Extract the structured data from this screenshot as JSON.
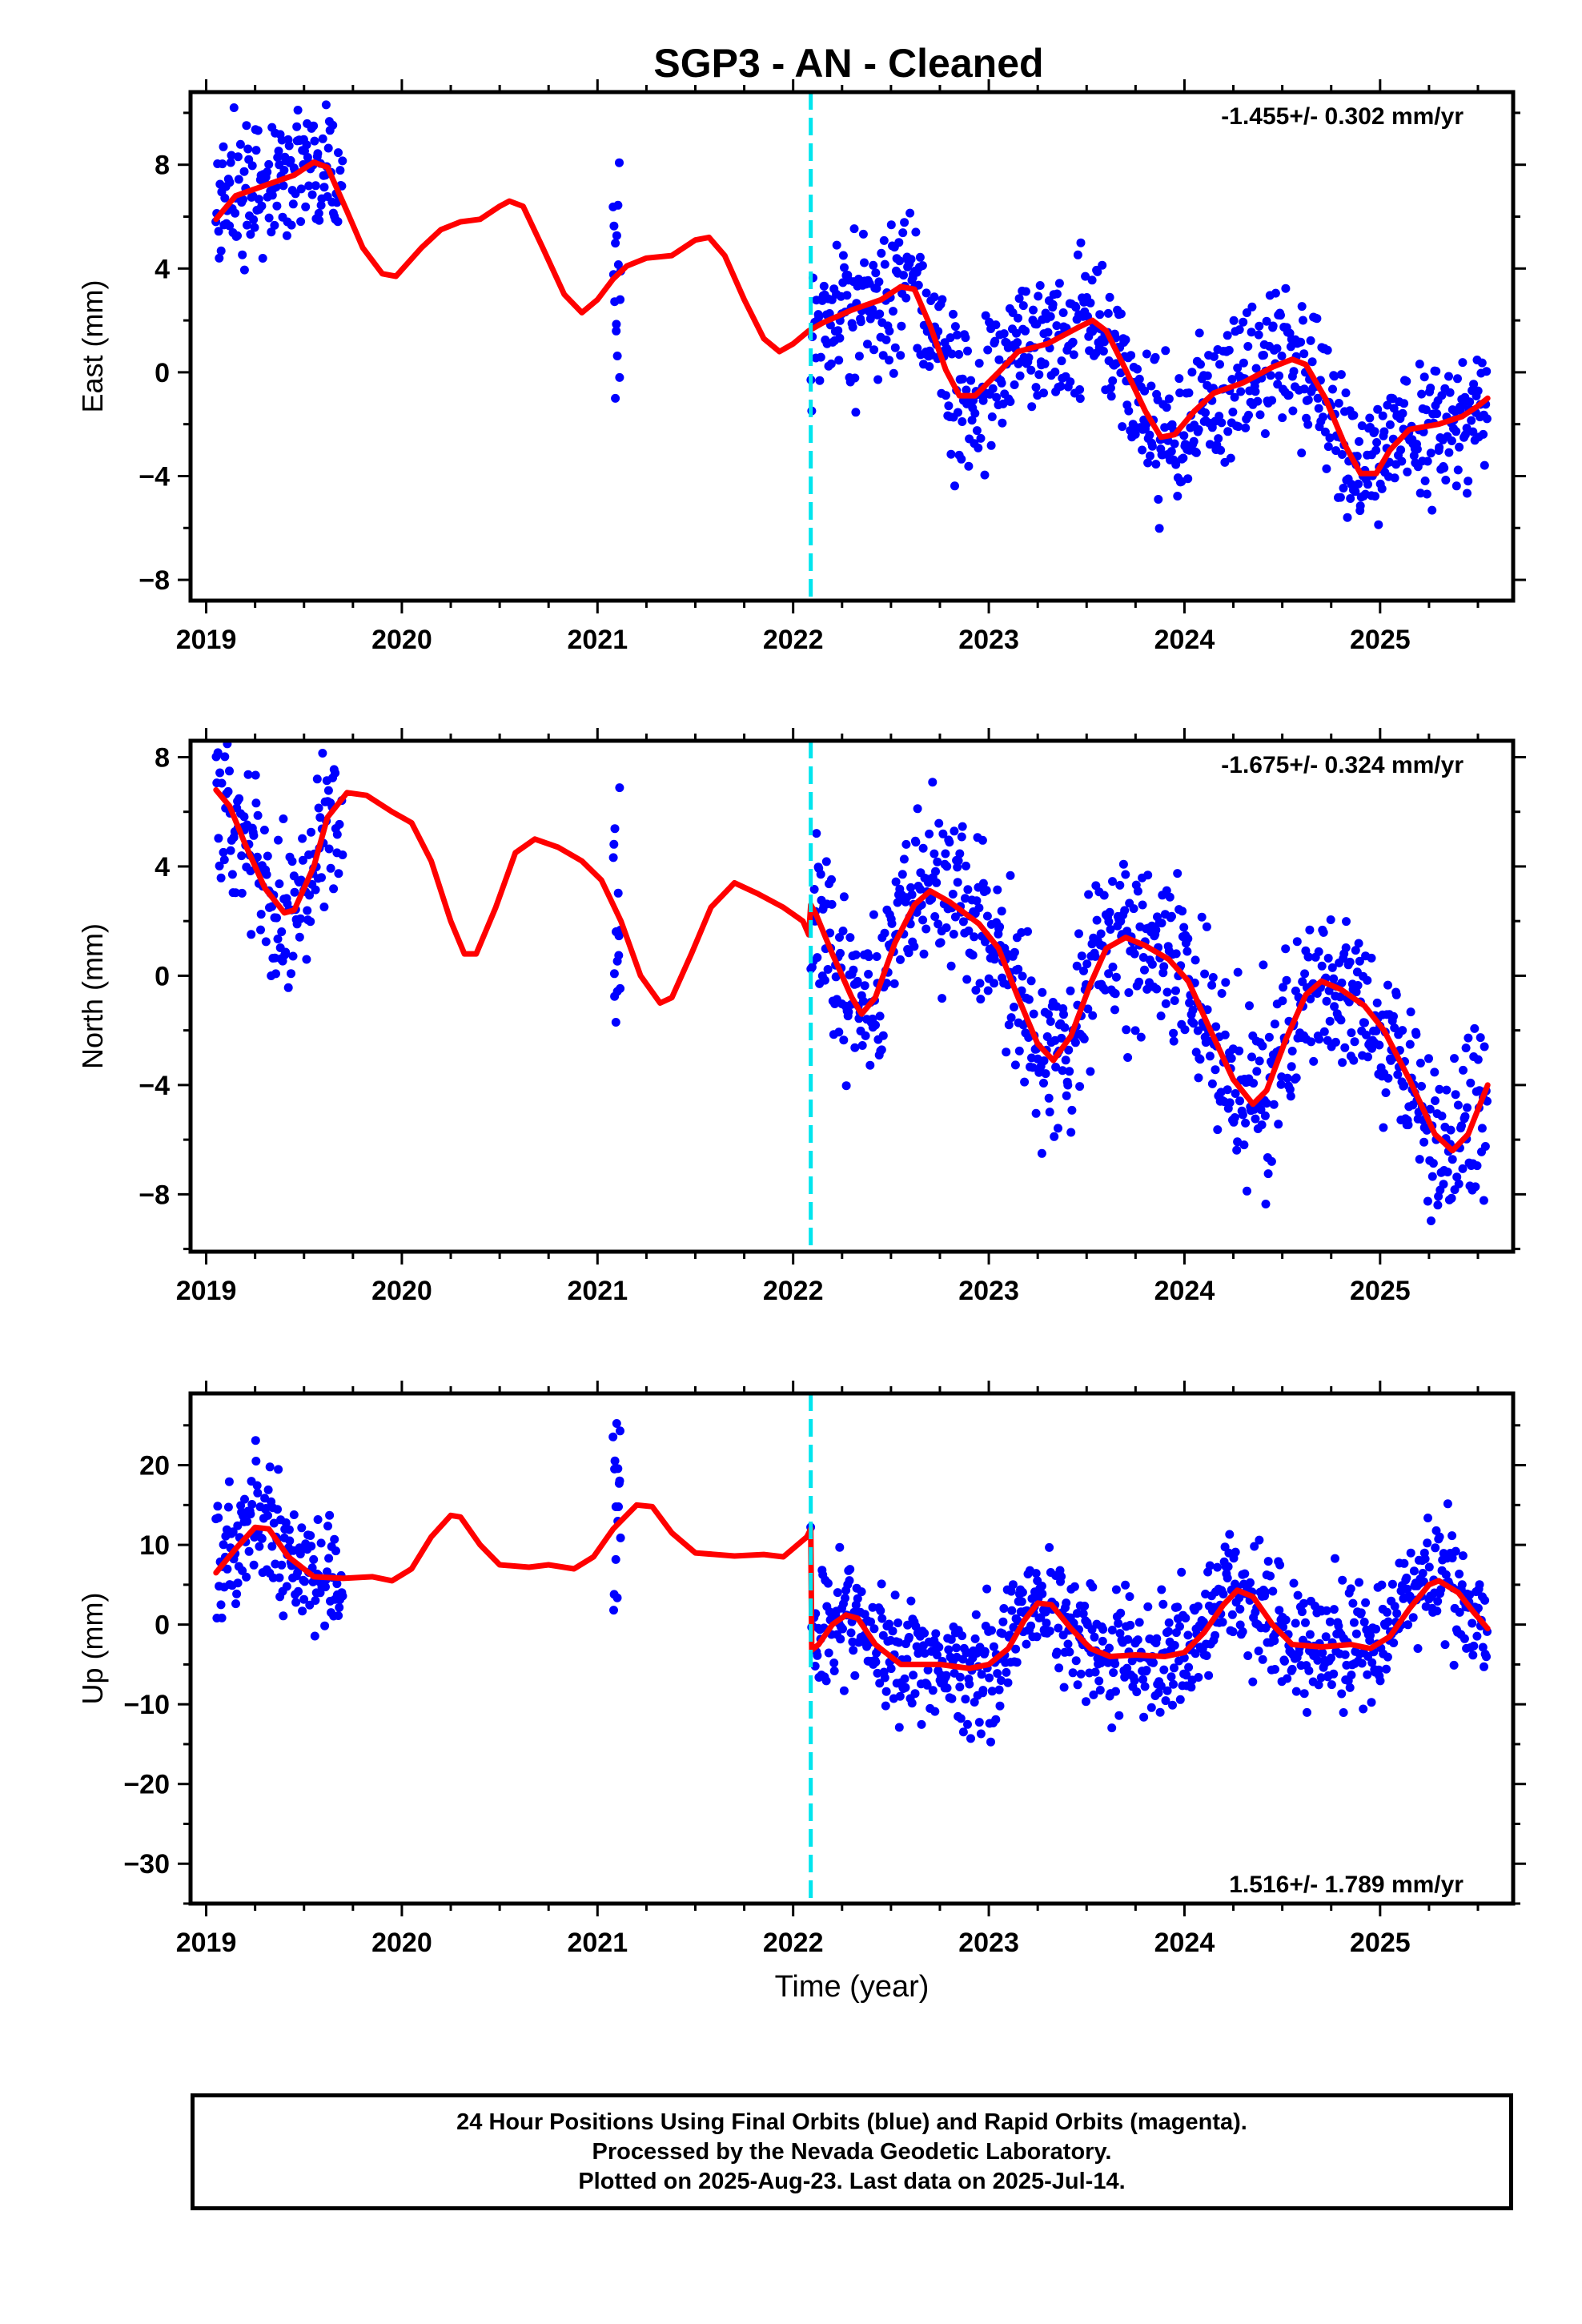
{
  "title": "SGP3  - AN - Cleaned",
  "colors": {
    "data": "#0000ff",
    "model": "#ff0000",
    "event": "#00e5ee",
    "axis": "#000000"
  },
  "chart_data": [
    {
      "type": "scatter",
      "name": "east",
      "ylabel": "East (mm)",
      "xlabel": "",
      "ylim": [
        -8.8,
        10.8
      ],
      "xlim": [
        2018.92,
        2025.68
      ],
      "yticks": [
        -8,
        -4,
        0,
        4,
        8
      ],
      "rate_label": "-1.455+/- 0.302 mm/yr",
      "rate_position": "top-right",
      "model_curve": [
        [
          2019.05,
          5.9
        ],
        [
          2019.15,
          6.8
        ],
        [
          2019.3,
          7.2
        ],
        [
          2019.45,
          7.6
        ],
        [
          2019.55,
          8.1
        ],
        [
          2019.62,
          7.9
        ],
        [
          2019.72,
          6.2
        ],
        [
          2019.8,
          4.8
        ],
        [
          2019.9,
          3.8
        ],
        [
          2019.97,
          3.7
        ],
        [
          2020.1,
          4.8
        ],
        [
          2020.2,
          5.5
        ],
        [
          2020.3,
          5.8
        ],
        [
          2020.4,
          5.9
        ],
        [
          2020.5,
          6.4
        ],
        [
          2020.55,
          6.6
        ],
        [
          2020.62,
          6.4
        ],
        [
          2020.72,
          4.8
        ],
        [
          2020.83,
          3
        ],
        [
          2020.92,
          2.3
        ],
        [
          2021.0,
          2.8
        ],
        [
          2021.08,
          3.6
        ],
        [
          2021.15,
          4.1
        ],
        [
          2021.25,
          4.4
        ],
        [
          2021.38,
          4.5
        ],
        [
          2021.5,
          5.1
        ],
        [
          2021.57,
          5.2
        ],
        [
          2021.65,
          4.5
        ],
        [
          2021.75,
          2.8
        ],
        [
          2021.85,
          1.3
        ],
        [
          2021.93,
          0.8
        ],
        [
          2022.0,
          1.1
        ],
        [
          2022.08,
          1.6
        ],
        [
          2022.15,
          1.9
        ],
        [
          2022.3,
          2.4
        ],
        [
          2022.45,
          2.8
        ],
        [
          2022.55,
          3.3
        ],
        [
          2022.62,
          3.2
        ],
        [
          2022.7,
          1.8
        ],
        [
          2022.78,
          0.1
        ],
        [
          2022.85,
          -0.9
        ],
        [
          2022.93,
          -0.9
        ],
        [
          2023.05,
          0
        ],
        [
          2023.15,
          0.8
        ],
        [
          2023.3,
          1.1
        ],
        [
          2023.45,
          1.7
        ],
        [
          2023.53,
          2
        ],
        [
          2023.6,
          1.6
        ],
        [
          2023.7,
          0.1
        ],
        [
          2023.8,
          -1.5
        ],
        [
          2023.88,
          -2.5
        ],
        [
          2023.95,
          -2.4
        ],
        [
          2024.05,
          -1.5
        ],
        [
          2024.15,
          -0.8
        ],
        [
          2024.3,
          -0.4
        ],
        [
          2024.45,
          0.2
        ],
        [
          2024.55,
          0.5
        ],
        [
          2024.62,
          0.3
        ],
        [
          2024.72,
          -1
        ],
        [
          2024.82,
          -2.8
        ],
        [
          2024.9,
          -3.9
        ],
        [
          2024.98,
          -3.9
        ],
        [
          2025.05,
          -3
        ],
        [
          2025.15,
          -2.2
        ],
        [
          2025.3,
          -2
        ],
        [
          2025.42,
          -1.7
        ],
        [
          2025.5,
          -1.3
        ],
        [
          2025.55,
          -1
        ]
      ]
    },
    {
      "type": "scatter",
      "name": "north",
      "ylabel": "North (mm)",
      "xlabel": "",
      "ylim": [
        -10.1,
        8.6
      ],
      "xlim": [
        2018.92,
        2025.68
      ],
      "yticks": [
        -8,
        -4,
        0,
        4,
        8
      ],
      "rate_label": "-1.675+/- 0.324 mm/yr",
      "rate_position": "top-right",
      "model_curve": [
        [
          2019.05,
          6.8
        ],
        [
          2019.12,
          6.2
        ],
        [
          2019.2,
          4.8
        ],
        [
          2019.3,
          3.2
        ],
        [
          2019.4,
          2.3
        ],
        [
          2019.45,
          2.4
        ],
        [
          2019.55,
          4
        ],
        [
          2019.62,
          5.8
        ],
        [
          2019.72,
          6.7
        ],
        [
          2019.82,
          6.6
        ],
        [
          2019.95,
          6
        ],
        [
          2020.05,
          5.6
        ],
        [
          2020.15,
          4.2
        ],
        [
          2020.25,
          2
        ],
        [
          2020.32,
          0.8
        ],
        [
          2020.38,
          0.8
        ],
        [
          2020.48,
          2.5
        ],
        [
          2020.58,
          4.5
        ],
        [
          2020.68,
          5
        ],
        [
          2020.8,
          4.7
        ],
        [
          2020.92,
          4.2
        ],
        [
          2021.02,
          3.5
        ],
        [
          2021.12,
          2
        ],
        [
          2021.22,
          0
        ],
        [
          2021.32,
          -1
        ],
        [
          2021.38,
          -0.8
        ],
        [
          2021.48,
          0.8
        ],
        [
          2021.58,
          2.5
        ],
        [
          2021.7,
          3.4
        ],
        [
          2021.82,
          3
        ],
        [
          2021.95,
          2.5
        ],
        [
          2022.05,
          2
        ],
        [
          2022.08,
          1.5
        ],
        [
          2022.09,
          2.6
        ],
        [
          2022.12,
          2.2
        ],
        [
          2022.2,
          0.8
        ],
        [
          2022.3,
          -0.8
        ],
        [
          2022.35,
          -1.4
        ],
        [
          2022.42,
          -0.8
        ],
        [
          2022.52,
          1.2
        ],
        [
          2022.62,
          2.6
        ],
        [
          2022.7,
          3.1
        ],
        [
          2022.8,
          2.7
        ],
        [
          2022.95,
          1.9
        ],
        [
          2023.05,
          1
        ],
        [
          2023.15,
          -0.8
        ],
        [
          2023.25,
          -2.5
        ],
        [
          2023.33,
          -3.1
        ],
        [
          2023.42,
          -2.2
        ],
        [
          2023.52,
          -0.3
        ],
        [
          2023.6,
          1
        ],
        [
          2023.7,
          1.4
        ],
        [
          2023.8,
          1.1
        ],
        [
          2023.92,
          0.6
        ],
        [
          2024.02,
          -0.2
        ],
        [
          2024.12,
          -1.8
        ],
        [
          2024.25,
          -3.8
        ],
        [
          2024.35,
          -4.7
        ],
        [
          2024.42,
          -4.2
        ],
        [
          2024.52,
          -2.3
        ],
        [
          2024.62,
          -0.7
        ],
        [
          2024.7,
          -0.2
        ],
        [
          2024.8,
          -0.5
        ],
        [
          2024.92,
          -1.1
        ],
        [
          2025.02,
          -2
        ],
        [
          2025.15,
          -3.8
        ],
        [
          2025.28,
          -5.8
        ],
        [
          2025.37,
          -6.4
        ],
        [
          2025.45,
          -5.8
        ],
        [
          2025.55,
          -4
        ]
      ]
    },
    {
      "type": "scatter",
      "name": "up",
      "ylabel": "Up (mm)",
      "xlabel": "Time (year)",
      "ylim": [
        -35.0,
        29.0
      ],
      "xlim": [
        2018.92,
        2025.68
      ],
      "yticks": [
        -30,
        -20,
        -10,
        0,
        10,
        20
      ],
      "rate_label": "1.516+/- 1.789 mm/yr",
      "rate_position": "bottom-right",
      "model_curve": [
        [
          2019.05,
          6.5
        ],
        [
          2019.15,
          9.5
        ],
        [
          2019.25,
          12.2
        ],
        [
          2019.32,
          12
        ],
        [
          2019.42,
          8.5
        ],
        [
          2019.55,
          6
        ],
        [
          2019.7,
          5.8
        ],
        [
          2019.85,
          6
        ],
        [
          2019.95,
          5.5
        ],
        [
          2020.05,
          7
        ],
        [
          2020.15,
          11
        ],
        [
          2020.25,
          13.7
        ],
        [
          2020.3,
          13.5
        ],
        [
          2020.4,
          10
        ],
        [
          2020.5,
          7.5
        ],
        [
          2020.65,
          7.2
        ],
        [
          2020.75,
          7.5
        ],
        [
          2020.88,
          7
        ],
        [
          2020.98,
          8.5
        ],
        [
          2021.08,
          12
        ],
        [
          2021.2,
          15
        ],
        [
          2021.28,
          14.8
        ],
        [
          2021.38,
          11.5
        ],
        [
          2021.5,
          9
        ],
        [
          2021.7,
          8.6
        ],
        [
          2021.85,
          8.8
        ],
        [
          2021.95,
          8.5
        ],
        [
          2022.07,
          11
        ],
        [
          2022.09,
          12
        ],
        [
          2022.095,
          -3.2
        ],
        [
          2022.13,
          -2.5
        ],
        [
          2022.2,
          0
        ],
        [
          2022.27,
          1.2
        ],
        [
          2022.33,
          0.8
        ],
        [
          2022.42,
          -2.5
        ],
        [
          2022.55,
          -5
        ],
        [
          2022.75,
          -5
        ],
        [
          2022.9,
          -5.5
        ],
        [
          2023.0,
          -5
        ],
        [
          2023.1,
          -3
        ],
        [
          2023.18,
          0.5
        ],
        [
          2023.25,
          2.7
        ],
        [
          2023.32,
          2.5
        ],
        [
          2023.42,
          -0.5
        ],
        [
          2023.52,
          -3
        ],
        [
          2023.62,
          -4
        ],
        [
          2023.75,
          -3.8
        ],
        [
          2023.9,
          -4
        ],
        [
          2024.0,
          -3.5
        ],
        [
          2024.1,
          -1
        ],
        [
          2024.2,
          2.5
        ],
        [
          2024.27,
          4.3
        ],
        [
          2024.35,
          3.5
        ],
        [
          2024.45,
          0
        ],
        [
          2024.55,
          -2.5
        ],
        [
          2024.7,
          -2.8
        ],
        [
          2024.85,
          -2.5
        ],
        [
          2024.95,
          -3
        ],
        [
          2025.05,
          -1.5
        ],
        [
          2025.15,
          2
        ],
        [
          2025.25,
          5
        ],
        [
          2025.3,
          5.5
        ],
        [
          2025.4,
          4
        ],
        [
          2025.48,
          1.5
        ],
        [
          2025.55,
          -0.5
        ]
      ]
    }
  ],
  "x_axis": {
    "ticks": [
      2019,
      2020,
      2021,
      2022,
      2023,
      2024,
      2025
    ],
    "tick_labels": [
      "2019",
      "2020",
      "2021",
      "2022",
      "2023",
      "2024",
      "2025"
    ]
  },
  "event_line_x": 2022.09,
  "footer": {
    "line1": "24 Hour Positions Using Final Orbits (blue) and Rapid Orbits (magenta).",
    "line2": "Processed by the Nevada Geodetic Laboratory.",
    "line3": "Plotted on 2025-Aug-23. Last data on 2025-Jul-14."
  }
}
